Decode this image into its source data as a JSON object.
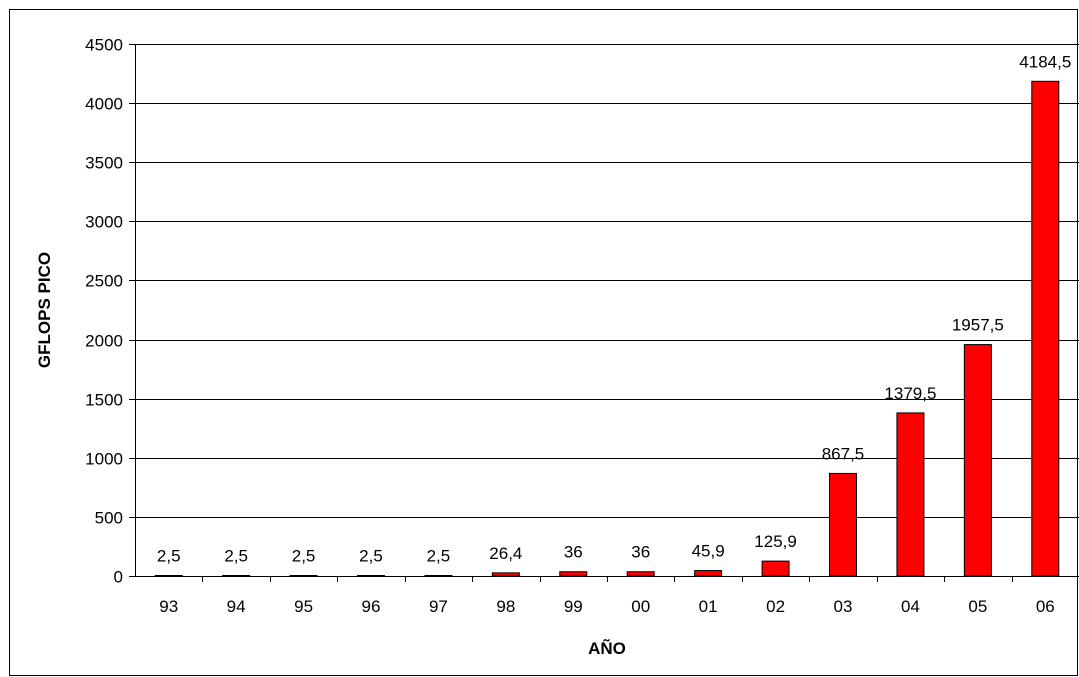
{
  "chart_data": {
    "type": "bar",
    "categories": [
      "93",
      "94",
      "95",
      "96",
      "97",
      "98",
      "99",
      "00",
      "01",
      "02",
      "03",
      "04",
      "05",
      "06"
    ],
    "values": [
      2.5,
      2.5,
      2.5,
      2.5,
      2.5,
      26.4,
      36,
      36,
      45.9,
      125.9,
      867.5,
      1379.5,
      1957.5,
      4184.5
    ],
    "data_labels": [
      "2,5",
      "2,5",
      "2,5",
      "2,5",
      "2,5",
      "26,4",
      "36",
      "36",
      "45,9",
      "125,9",
      "867,5",
      "1379,5",
      "1957,5",
      "4184,5"
    ],
    "xlabel": "AÑO",
    "ylabel": "GFLOPS PICO",
    "ylim": [
      0,
      4500
    ],
    "yticks": [
      0,
      500,
      1000,
      1500,
      2000,
      2500,
      3000,
      3500,
      4000,
      4500
    ],
    "grid": true,
    "bar_color": "#ff0000",
    "legend": "none"
  }
}
